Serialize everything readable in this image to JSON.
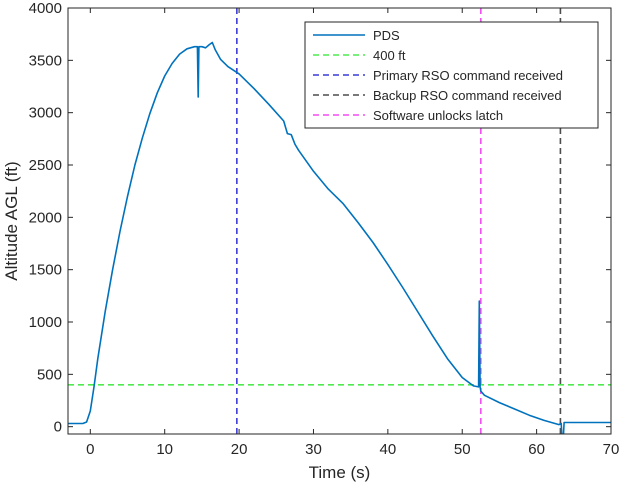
{
  "chart_data": {
    "type": "line",
    "xlabel": "Time (s)",
    "ylabel": "Altitude AGL (ft)",
    "xlim": [
      -3,
      70
    ],
    "ylim": [
      -70,
      4000
    ],
    "xticks": [
      0,
      10,
      20,
      30,
      40,
      50,
      60,
      70
    ],
    "yticks": [
      0,
      500,
      1000,
      1500,
      2000,
      2500,
      3000,
      3500,
      4000
    ],
    "xtick_labels": [
      "0",
      "10",
      "20",
      "30",
      "40",
      "50",
      "60",
      "70"
    ],
    "ytick_labels": [
      "0",
      "500",
      "1000",
      "1500",
      "2000",
      "2500",
      "3000",
      "3500",
      "4000"
    ],
    "grid": false,
    "legend_position": "top-right",
    "series": [
      {
        "name": "PDS",
        "style": "solid",
        "color": "#0072BD",
        "points": [
          [
            -3,
            30
          ],
          [
            -1,
            30
          ],
          [
            -0.5,
            45
          ],
          [
            0,
            150
          ],
          [
            0.5,
            380
          ],
          [
            1,
            650
          ],
          [
            2,
            1100
          ],
          [
            3,
            1500
          ],
          [
            4,
            1870
          ],
          [
            5,
            2200
          ],
          [
            6,
            2500
          ],
          [
            7,
            2760
          ],
          [
            8,
            2990
          ],
          [
            9,
            3190
          ],
          [
            10,
            3350
          ],
          [
            11,
            3470
          ],
          [
            12,
            3560
          ],
          [
            13,
            3610
          ],
          [
            14,
            3630
          ],
          [
            14.4,
            3630
          ],
          [
            14.5,
            3150
          ],
          [
            14.6,
            3630
          ],
          [
            15,
            3630
          ],
          [
            15.5,
            3620
          ],
          [
            16,
            3650
          ],
          [
            16.4,
            3670
          ],
          [
            16.8,
            3600
          ],
          [
            17.5,
            3510
          ],
          [
            18.5,
            3440
          ],
          [
            20,
            3370
          ],
          [
            22,
            3230
          ],
          [
            24,
            3080
          ],
          [
            26,
            2920
          ],
          [
            26.5,
            2800
          ],
          [
            27,
            2790
          ],
          [
            27.5,
            2700
          ],
          [
            28,
            2640
          ],
          [
            30,
            2440
          ],
          [
            32,
            2270
          ],
          [
            34,
            2130
          ],
          [
            36,
            1950
          ],
          [
            38,
            1760
          ],
          [
            40,
            1550
          ],
          [
            42,
            1330
          ],
          [
            44,
            1100
          ],
          [
            46,
            870
          ],
          [
            48,
            650
          ],
          [
            50,
            470
          ],
          [
            51.5,
            390
          ],
          [
            52.2,
            380
          ],
          [
            52.3,
            1200
          ],
          [
            52.4,
            380
          ],
          [
            52.5,
            340
          ],
          [
            53,
            300
          ],
          [
            55,
            230
          ],
          [
            57,
            170
          ],
          [
            59,
            110
          ],
          [
            61,
            60
          ],
          [
            63,
            20
          ],
          [
            63.3,
            30
          ],
          [
            63.4,
            -90
          ],
          [
            63.6,
            -90
          ],
          [
            63.7,
            40
          ],
          [
            65,
            40
          ],
          [
            70,
            40
          ]
        ]
      },
      {
        "name": "400 ft",
        "style": "dashed",
        "color": "#4DEB4D",
        "orientation": "horizontal",
        "value": 400
      },
      {
        "name": "Primary RSO command received",
        "style": "dashed",
        "color": "#3B3BD9",
        "orientation": "vertical",
        "value": 19.7
      },
      {
        "name": "Backup RSO command received",
        "style": "dashed",
        "color": "#4D4D4D",
        "orientation": "vertical",
        "value": 63.2
      },
      {
        "name": "Software unlocks latch",
        "style": "dashed",
        "color": "#F24DF2",
        "orientation": "vertical",
        "value": 52.5
      }
    ]
  }
}
